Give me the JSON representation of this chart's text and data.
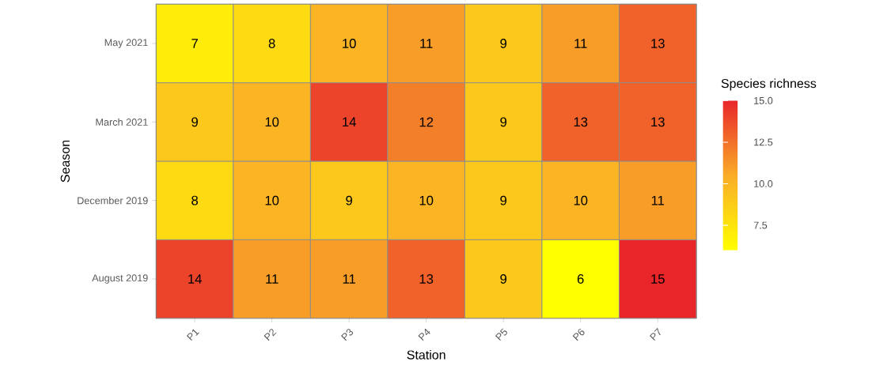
{
  "chart_data": {
    "type": "heatmap",
    "xlabel": "Station",
    "ylabel": "Season",
    "clabel": "Species richness",
    "categories": [
      "P1",
      "P2",
      "P3",
      "P4",
      "P5",
      "P6",
      "P7"
    ],
    "y_categories": [
      "May 2021",
      "March 2021",
      "December 2019",
      "August 2019"
    ],
    "cells": [
      [
        7,
        8,
        10,
        11,
        9,
        11,
        13
      ],
      [
        9,
        10,
        14,
        12,
        9,
        13,
        13
      ],
      [
        8,
        10,
        9,
        10,
        9,
        10,
        11
      ],
      [
        14,
        11,
        11,
        13,
        9,
        6,
        15
      ]
    ],
    "clim": [
      6,
      15
    ],
    "cticks": [
      7.5,
      {
        "value": 10,
        "label": "10.0"
      },
      {
        "value": 12.5,
        "label": "12.5"
      },
      {
        "value": 15,
        "label": "15.0"
      }
    ],
    "data_labels": true
  }
}
